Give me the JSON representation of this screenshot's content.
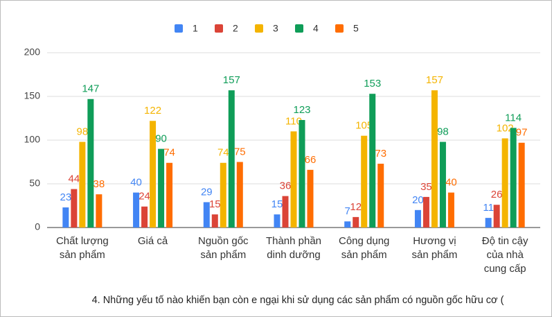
{
  "chart_data": {
    "type": "bar",
    "x_label": "4. Những yếu tố nào khiến bạn còn e ngại khi sử dụng các sản phẩm có nguồn gốc hữu cơ (",
    "categories": [
      [
        "Chất lượng",
        "sản phẩm"
      ],
      [
        "Giá cả"
      ],
      [
        "Nguồn gốc",
        "sản phẩm"
      ],
      [
        "Thành phần",
        "dinh dưỡng"
      ],
      [
        "Công dụng",
        "sản phẩm"
      ],
      [
        "Hương vị",
        "sản phẩm"
      ],
      [
        "Độ tin cậy",
        "của nhà",
        "cung cấp"
      ]
    ],
    "series": [
      {
        "name": "1",
        "color": "#4285f4",
        "values": [
          23,
          40,
          29,
          15,
          7,
          20,
          11
        ]
      },
      {
        "name": "2",
        "color": "#db4437",
        "values": [
          44,
          24,
          15,
          36,
          12,
          35,
          26
        ]
      },
      {
        "name": "3",
        "color": "#f4b400",
        "values": [
          98,
          122,
          74,
          110,
          105,
          157,
          102
        ]
      },
      {
        "name": "4",
        "color": "#0f9d58",
        "values": [
          147,
          90,
          157,
          123,
          153,
          98,
          114
        ]
      },
      {
        "name": "5",
        "color": "#ff6d01",
        "values": [
          38,
          74,
          75,
          66,
          73,
          40,
          97
        ]
      }
    ],
    "ylim": [
      0,
      200
    ],
    "yticks": [
      0,
      50,
      100,
      150,
      200
    ],
    "grid": true,
    "legend": "top"
  }
}
